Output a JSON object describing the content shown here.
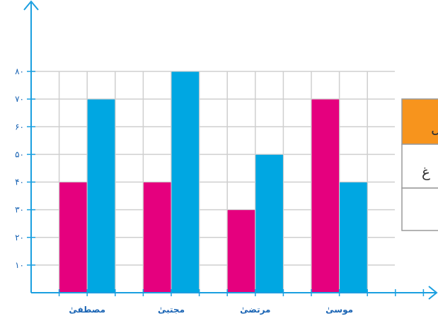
{
  "chart_data": {
    "type": "bar",
    "categories": [
      "مصطفیٰ",
      "مجتبیٰ",
      "مرتضیٰ",
      "موسیٰ"
    ],
    "series": [
      {
        "values": [
          40,
          40,
          30,
          70
        ]
      },
      {
        "values": [
          70,
          80,
          50,
          40
        ]
      }
    ],
    "colors": [
      "#e5007e",
      "#00a7e2"
    ],
    "ylim": [
      0,
      80
    ],
    "yticks": [
      10,
      20,
      30,
      40,
      50,
      60,
      70,
      80
    ],
    "ytick_labels": [
      "۱۰",
      "۲۰",
      "۳۰",
      "۴۰",
      "۵۰",
      "۶۰",
      "۷۰",
      "۸۰"
    ],
    "grid": true,
    "axis_color": "#1a9fe0",
    "grid_color": "#cfcfcf"
  },
  "side_table": {
    "header_color": "#f7941d",
    "header_text": "ل",
    "row_text": "غ"
  }
}
